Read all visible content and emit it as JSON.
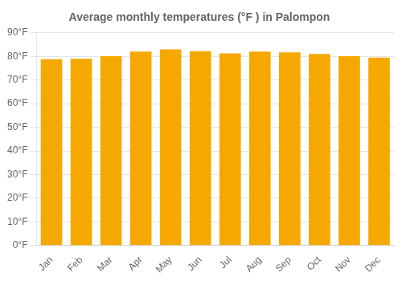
{
  "chart_data": {
    "type": "bar",
    "title": "Average monthly temperatures (°F ) in Palompon",
    "categories": [
      "Jan",
      "Feb",
      "Mar",
      "Apr",
      "May",
      "Jun",
      "Jul",
      "Aug",
      "Sep",
      "Oct",
      "Nov",
      "Dec"
    ],
    "values": [
      78.8,
      79.0,
      80.1,
      82.0,
      83.0,
      82.2,
      81.3,
      82.0,
      81.7,
      81.0,
      80.1,
      79.5
    ],
    "color": "#F5A800",
    "ylim": [
      0,
      90
    ],
    "yticks": [
      {
        "value": 0,
        "label": "0°F"
      },
      {
        "value": 10,
        "label": "10°F"
      },
      {
        "value": 20,
        "label": "20°F"
      },
      {
        "value": 30,
        "label": "30°F"
      },
      {
        "value": 40,
        "label": "40°F"
      },
      {
        "value": 50,
        "label": "50°F"
      },
      {
        "value": 60,
        "label": "60°F"
      },
      {
        "value": 70,
        "label": "70°F"
      },
      {
        "value": 80,
        "label": "80°F"
      },
      {
        "value": 90,
        "label": "90°F"
      }
    ],
    "grid": true
  }
}
